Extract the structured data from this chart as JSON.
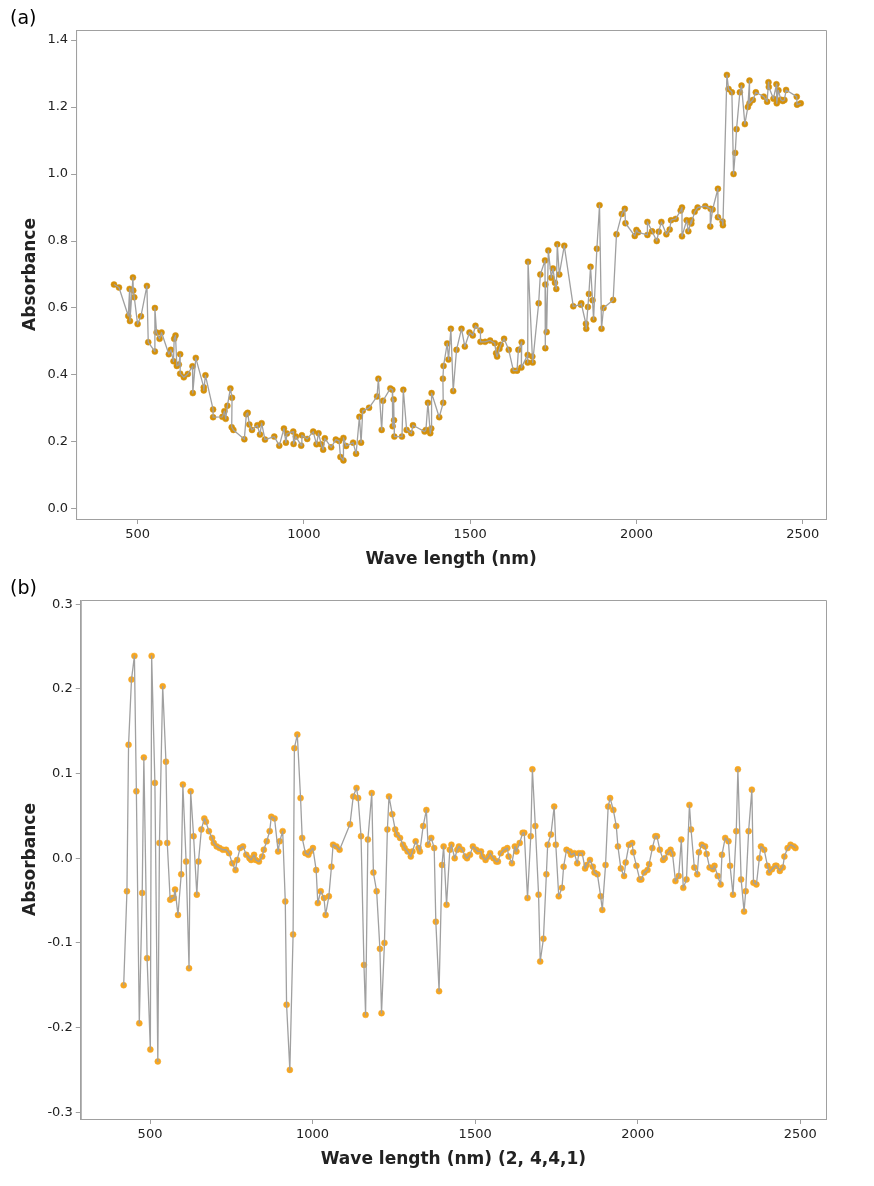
{
  "chart_data": [
    {
      "type": "line",
      "title": "(a)",
      "xlabel": "Wave length (nm)",
      "ylabel": "Absorbance",
      "line_style": "solid",
      "xlim": [
        315,
        2570
      ],
      "ylim": [
        -0.03,
        1.43
      ],
      "xticks": [
        500,
        1000,
        1500,
        2000,
        2500
      ],
      "yticks": [
        {
          "value": 0,
          "label": "0.0"
        },
        {
          "value": 0.2,
          "label": "0.2"
        },
        {
          "value": 0.4,
          "label": "0.4"
        },
        {
          "value": 0.6,
          "label": "0.6"
        },
        {
          "value": 0.8,
          "label": "0.8"
        },
        {
          "value": 1,
          "label": "1.0"
        },
        {
          "value": 1.2,
          "label": "1.2"
        },
        {
          "value": 1.4,
          "label": "1.4"
        }
      ],
      "x": [
        429,
        444,
        472,
        476,
        477,
        486,
        487,
        490,
        500,
        510,
        528,
        532,
        552,
        552,
        557,
        566,
        572,
        594,
        600,
        608,
        610,
        614,
        618,
        624,
        628,
        628,
        639,
        651,
        665,
        666,
        675,
        699,
        699,
        704,
        727,
        727,
        755,
        761,
        765,
        770,
        779,
        784,
        783,
        788,
        821,
        827,
        831,
        836,
        844,
        860,
        868,
        873,
        883,
        911,
        926,
        940,
        946,
        949,
        968,
        969,
        976,
        992,
        994,
        1010,
        1028,
        1038,
        1044,
        1052,
        1058,
        1063,
        1082,
        1096,
        1106,
        1110,
        1119,
        1119,
        1127,
        1148,
        1157,
        1167,
        1172,
        1177,
        1196,
        1220,
        1224,
        1234,
        1238,
        1260,
        1266,
        1267,
        1270,
        1271,
        1272,
        1295,
        1299,
        1309,
        1323,
        1328,
        1363,
        1367,
        1373,
        1380,
        1383,
        1384,
        1407,
        1419,
        1418,
        1420,
        1431,
        1435,
        1442,
        1449,
        1459,
        1474,
        1484,
        1498,
        1508,
        1516,
        1531,
        1531,
        1545,
        1560,
        1574,
        1578,
        1581,
        1588,
        1592,
        1602,
        1616,
        1630,
        1641,
        1645,
        1655,
        1654,
        1673,
        1673,
        1674,
        1687,
        1688,
        1706,
        1711,
        1725,
        1726,
        1726,
        1730,
        1735,
        1744,
        1749,
        1755,
        1759,
        1762,
        1768,
        1783,
        1810,
        1833,
        1834,
        1848,
        1849,
        1854,
        1857,
        1862,
        1868,
        1871,
        1881,
        1889,
        1895,
        1901,
        1930,
        1940,
        1956,
        1965,
        1967,
        1995,
        2000,
        2005,
        2033,
        2033,
        2047,
        2061,
        2067,
        2075,
        2090,
        2100,
        2104,
        2118,
        2133,
        2137,
        2137,
        2151,
        2156,
        2165,
        2165,
        2175,
        2184,
        2207,
        2223,
        2222,
        2229,
        2245,
        2245,
        2259,
        2260,
        2272,
        2277,
        2287,
        2292,
        2297,
        2301,
        2311,
        2316,
        2326,
        2335,
        2340,
        2340,
        2350,
        2359,
        2383,
        2393,
        2397,
        2398,
        2412,
        2421,
        2422,
        2427,
        2434,
        2440,
        2445,
        2450,
        2482,
        2483,
        2494
      ],
      "series": [
        {
          "type": "line",
          "color": "#a0a0a0",
          "marker": "none",
          "values": [
            0.67,
            0.661,
            0.576,
            0.657,
            0.561,
            0.691,
            0.652,
            0.632,
            0.552,
            0.575,
            0.666,
            0.498,
            0.47,
            0.6,
            0.527,
            0.508,
            0.527,
            0.462,
            0.475,
            0.441,
            0.508,
            0.518,
            0.427,
            0.431,
            0.462,
            0.404,
            0.393,
            0.403,
            0.426,
            0.346,
            0.451,
            0.363,
            0.354,
            0.399,
            0.297,
            0.274,
            0.275,
            0.292,
            0.269,
            0.308,
            0.36,
            0.332,
            0.244,
            0.236,
            0.208,
            0.283,
            0.287,
            0.252,
            0.236,
            0.25,
            0.222,
            0.256,
            0.207,
            0.216,
            0.189,
            0.24,
            0.198,
            0.225,
            0.231,
            0.194,
            0.216,
            0.189,
            0.22,
            0.209,
            0.231,
            0.193,
            0.226,
            0.193,
            0.177,
            0.211,
            0.184,
            0.207,
            0.203,
            0.155,
            0.145,
            0.212,
            0.188,
            0.198,
            0.165,
            0.275,
            0.198,
            0.293,
            0.302,
            0.336,
            0.389,
            0.236,
            0.323,
            0.36,
            0.356,
            0.247,
            0.327,
            0.265,
            0.216,
            0.216,
            0.356,
            0.236,
            0.226,
            0.25,
            0.231,
            0.236,
            0.317,
            0.226,
            0.24,
            0.346,
            0.274,
            0.317,
            0.389,
            0.427,
            0.494,
            0.446,
            0.538,
            0.352,
            0.475,
            0.538,
            0.485,
            0.527,
            0.518,
            0.547,
            0.533,
            0.499,
            0.499,
            0.503,
            0.495,
            0.465,
            0.455,
            0.478,
            0.49,
            0.508,
            0.475,
            0.413,
            0.413,
            0.475,
            0.498,
            0.422,
            0.46,
            0.437,
            0.738,
            0.455,
            0.437,
            0.614,
            0.7,
            0.742,
            0.48,
            0.67,
            0.528,
            0.772,
            0.69,
            0.718,
            0.675,
            0.657,
            0.79,
            0.7,
            0.786,
            0.605,
            0.61,
            0.614,
            0.553,
            0.538,
            0.603,
            0.642,
            0.723,
            0.623,
            0.566,
            0.777,
            0.907,
            0.538,
            0.6,
            0.624,
            0.82,
            0.881,
            0.896,
            0.853,
            0.815,
            0.833,
            0.826,
            0.818,
            0.857,
            0.829,
            0.8,
            0.828,
            0.857,
            0.82,
            0.834,
            0.862,
            0.866,
            0.891,
            0.9,
            0.814,
            0.862,
            0.829,
            0.862,
            0.852,
            0.887,
            0.9,
            0.904,
            0.896,
            0.843,
            0.894,
            0.956,
            0.871,
            0.858,
            0.847,
            1.296,
            1.254,
            1.244,
            1.0,
            1.063,
            1.134,
            1.244,
            1.264,
            1.149,
            1.2,
            1.279,
            1.211,
            1.221,
            1.244,
            1.231,
            1.216,
            1.274,
            1.26,
            1.225,
            1.268,
            1.211,
            1.25,
            1.222,
            1.218,
            1.221,
            1.251,
            1.231,
            1.207,
            1.211
          ]
        },
        {
          "type": "scatter",
          "color": "#d4900a",
          "marker": "circle",
          "values": [
            0.67,
            0.661,
            0.576,
            0.657,
            0.561,
            0.691,
            0.652,
            0.632,
            0.552,
            0.575,
            0.666,
            0.498,
            0.47,
            0.6,
            0.527,
            0.508,
            0.527,
            0.462,
            0.475,
            0.441,
            0.508,
            0.518,
            0.427,
            0.431,
            0.462,
            0.404,
            0.393,
            0.403,
            0.426,
            0.346,
            0.451,
            0.363,
            0.354,
            0.399,
            0.297,
            0.274,
            0.275,
            0.292,
            0.269,
            0.308,
            0.36,
            0.332,
            0.244,
            0.236,
            0.208,
            0.283,
            0.287,
            0.252,
            0.236,
            0.25,
            0.222,
            0.256,
            0.207,
            0.216,
            0.189,
            0.24,
            0.198,
            0.225,
            0.231,
            0.194,
            0.216,
            0.189,
            0.22,
            0.209,
            0.231,
            0.193,
            0.226,
            0.193,
            0.177,
            0.211,
            0.184,
            0.207,
            0.203,
            0.155,
            0.145,
            0.212,
            0.188,
            0.198,
            0.165,
            0.275,
            0.198,
            0.293,
            0.302,
            0.336,
            0.389,
            0.236,
            0.323,
            0.36,
            0.356,
            0.247,
            0.327,
            0.265,
            0.216,
            0.216,
            0.356,
            0.236,
            0.226,
            0.25,
            0.231,
            0.236,
            0.317,
            0.226,
            0.24,
            0.346,
            0.274,
            0.317,
            0.389,
            0.427,
            0.494,
            0.446,
            0.538,
            0.352,
            0.475,
            0.538,
            0.485,
            0.527,
            0.518,
            0.547,
            0.533,
            0.499,
            0.499,
            0.503,
            0.495,
            0.465,
            0.455,
            0.478,
            0.49,
            0.508,
            0.475,
            0.413,
            0.413,
            0.475,
            0.498,
            0.422,
            0.46,
            0.437,
            0.738,
            0.455,
            0.437,
            0.614,
            0.7,
            0.742,
            0.48,
            0.67,
            0.528,
            0.772,
            0.69,
            0.718,
            0.675,
            0.657,
            0.79,
            0.7,
            0.786,
            0.605,
            0.61,
            0.614,
            0.553,
            0.538,
            0.603,
            0.642,
            0.723,
            0.623,
            0.566,
            0.777,
            0.907,
            0.538,
            0.6,
            0.624,
            0.82,
            0.881,
            0.896,
            0.853,
            0.815,
            0.833,
            0.826,
            0.818,
            0.857,
            0.829,
            0.8,
            0.828,
            0.857,
            0.82,
            0.834,
            0.862,
            0.866,
            0.891,
            0.9,
            0.814,
            0.862,
            0.829,
            0.862,
            0.852,
            0.887,
            0.9,
            0.904,
            0.896,
            0.843,
            0.894,
            0.956,
            0.871,
            0.858,
            0.847,
            1.296,
            1.254,
            1.244,
            1.0,
            1.063,
            1.134,
            1.244,
            1.264,
            1.149,
            1.2,
            1.279,
            1.211,
            1.221,
            1.244,
            1.231,
            1.216,
            1.274,
            1.26,
            1.225,
            1.268,
            1.211,
            1.25,
            1.222,
            1.218,
            1.221,
            1.251,
            1.231,
            1.207,
            1.211
          ]
        }
      ]
    },
    {
      "type": "line",
      "title": "(b)",
      "xlabel": "Wave length (nm) (2, 4,4,1)",
      "ylabel": "Absorbance",
      "line_style": "solid",
      "xlim": [
        287,
        2579
      ],
      "ylim": [
        -0.308,
        0.305
      ],
      "xticks": [
        500,
        1000,
        1500,
        2000,
        2500
      ],
      "yticks": [
        {
          "value": -0.3,
          "label": "-0.3"
        },
        {
          "value": -0.2,
          "label": "-0.2"
        },
        {
          "value": -0.1,
          "label": "-0.1"
        },
        {
          "value": 0,
          "label": "0.0"
        },
        {
          "value": 0.1,
          "label": "0.1"
        },
        {
          "value": 0.2,
          "label": "0.2"
        },
        {
          "value": 0.3,
          "label": "0.3"
        }
      ],
      "x": [
        419,
        429,
        434,
        443,
        452,
        458,
        467,
        476,
        481,
        491,
        501,
        505,
        515,
        524,
        529,
        539,
        549,
        553,
        562,
        568,
        573,
        577,
        586,
        596,
        601,
        611,
        620,
        625,
        634,
        644,
        649,
        658,
        667,
        672,
        681,
        691,
        696,
        705,
        714,
        724,
        734,
        743,
        753,
        763,
        768,
        777,
        786,
        796,
        806,
        811,
        820,
        825,
        835,
        845,
        850,
        859,
        868,
        873,
        883,
        894,
        899,
        908,
        916,
        920,
        930,
        940,
        944,
        953,
        963,
        968,
        978,
        987,
        992,
        1001,
        1011,
        1016,
        1025,
        1035,
        1040,
        1050,
        1058,
        1063,
        1073,
        1083,
        1115,
        1125,
        1135,
        1140,
        1149,
        1158,
        1163,
        1170,
        1182,
        1187,
        1197,
        1207,
        1212,
        1221,
        1230,
        1235,
        1245,
        1254,
        1259,
        1269,
        1278,
        1283,
        1292,
        1302,
        1307,
        1317,
        1326,
        1330,
        1340,
        1350,
        1355,
        1365,
        1374,
        1379,
        1389,
        1398,
        1403,
        1412,
        1422,
        1427,
        1437,
        1445,
        1450,
        1460,
        1470,
        1475,
        1484,
        1493,
        1503,
        1508,
        1518,
        1522,
        1532,
        1541,
        1546,
        1556,
        1565,
        1570,
        1579,
        1589,
        1599,
        1603,
        1613,
        1622,
        1627,
        1637,
        1646,
        1651,
        1661,
        1671,
        1676,
        1685,
        1695,
        1700,
        1710,
        1719,
        1723,
        1733,
        1743,
        1748,
        1757,
        1767,
        1772,
        1781,
        1791,
        1795,
        1805,
        1814,
        1819,
        1829,
        1838,
        1843,
        1853,
        1862,
        1867,
        1876,
        1886,
        1891,
        1901,
        1909,
        1915,
        1925,
        1934,
        1939,
        1948,
        1958,
        1963,
        1973,
        1983,
        1986,
        1996,
        2006,
        2011,
        2020,
        2030,
        2035,
        2045,
        2054,
        2059,
        2068,
        2078,
        2083,
        2093,
        2101,
        2107,
        2116,
        2126,
        2134,
        2140,
        2150,
        2159,
        2164,
        2174,
        2183,
        2188,
        2197,
        2207,
        2212,
        2221,
        2231,
        2236,
        2246,
        2255,
        2259,
        2269,
        2279,
        2284,
        2293,
        2303,
        2308,
        2318,
        2327,
        2332,
        2341,
        2351,
        2356,
        2365,
        2374,
        2379,
        2389,
        2399,
        2404,
        2413,
        2423,
        2427,
        2437,
        2446,
        2451,
        2461,
        2470,
        2480,
        2485
      ],
      "series": [
        {
          "type": "line",
          "color": "#a0a0a0",
          "marker": "none",
          "values": [
            -0.15,
            -0.039,
            0.134,
            0.211,
            0.239,
            0.079,
            -0.195,
            -0.041,
            0.119,
            -0.118,
            -0.226,
            0.239,
            0.089,
            -0.24,
            0.018,
            0.203,
            0.114,
            0.018,
            -0.049,
            -0.047,
            -0.047,
            -0.037,
            -0.067,
            -0.019,
            0.087,
            -0.004,
            -0.13,
            0.079,
            0.026,
            -0.043,
            -0.004,
            0.034,
            0.047,
            0.043,
            0.032,
            0.024,
            0.018,
            0.014,
            0.012,
            0.01,
            0.01,
            0.006,
            -0.006,
            -0.014,
            -0.002,
            0.012,
            0.014,
            0.004,
            0.0,
            -0.002,
            0.004,
            -0.002,
            -0.004,
            0.002,
            0.01,
            0.02,
            0.032,
            0.049,
            0.047,
            0.008,
            0.02,
            0.032,
            -0.051,
            -0.173,
            -0.25,
            -0.09,
            0.13,
            0.146,
            0.071,
            0.024,
            0.006,
            0.004,
            0.008,
            0.012,
            -0.014,
            -0.053,
            -0.039,
            -0.047,
            -0.067,
            -0.045,
            -0.01,
            0.016,
            0.014,
            0.01,
            0.04,
            0.073,
            0.083,
            0.071,
            0.026,
            -0.126,
            -0.185,
            0.022,
            0.077,
            -0.017,
            -0.039,
            -0.107,
            -0.183,
            -0.1,
            0.034,
            0.073,
            0.052,
            0.034,
            0.028,
            0.024,
            0.016,
            0.012,
            0.008,
            0.002,
            0.008,
            0.02,
            0.012,
            0.008,
            0.038,
            0.057,
            0.016,
            0.024,
            0.012,
            -0.075,
            -0.157,
            -0.008,
            0.014,
            -0.055,
            0.01,
            0.016,
            0.0,
            0.01,
            0.014,
            0.01,
            0.002,
            0.0,
            0.004,
            0.014,
            0.01,
            0.008,
            0.008,
            0.002,
            -0.002,
            0.002,
            0.006,
            0.0,
            -0.004,
            -0.004,
            0.006,
            0.01,
            0.012,
            0.002,
            -0.006,
            0.014,
            0.008,
            0.018,
            0.03,
            0.03,
            -0.047,
            0.026,
            0.105,
            0.038,
            -0.043,
            -0.122,
            -0.095,
            -0.019,
            0.016,
            0.028,
            0.061,
            0.016,
            -0.045,
            -0.035,
            -0.01,
            0.01,
            0.008,
            0.004,
            0.006,
            -0.006,
            0.006,
            0.006,
            -0.012,
            -0.008,
            -0.002,
            -0.01,
            -0.017,
            -0.019,
            -0.045,
            -0.061,
            -0.008,
            0.061,
            0.071,
            0.057,
            0.038,
            0.014,
            -0.012,
            -0.021,
            -0.005,
            0.016,
            0.018,
            0.007,
            -0.009,
            -0.025,
            -0.025,
            -0.017,
            -0.014,
            -0.007,
            0.012,
            0.026,
            0.026,
            0.01,
            -0.002,
            0.0,
            0.007,
            0.01,
            0.005,
            -0.027,
            -0.021,
            0.022,
            -0.035,
            -0.025,
            0.063,
            0.034,
            -0.011,
            -0.019,
            0.007,
            0.016,
            0.014,
            0.005,
            -0.011,
            -0.013,
            -0.009,
            -0.021,
            -0.031,
            0.004,
            0.024,
            0.02,
            -0.009,
            -0.043,
            0.032,
            0.105,
            -0.025,
            -0.063,
            -0.039,
            0.032,
            0.081,
            -0.029,
            -0.031,
            0.0,
            0.014,
            0.01,
            -0.009,
            -0.017,
            -0.013,
            -0.009,
            -0.009,
            -0.015,
            -0.011,
            0.002,
            0.012,
            0.016,
            0.014,
            0.012
          ]
        },
        {
          "type": "scatter",
          "color": "#f5a623",
          "marker": "circle",
          "values": [
            -0.15,
            -0.039,
            0.134,
            0.211,
            0.239,
            0.079,
            -0.195,
            -0.041,
            0.119,
            -0.118,
            -0.226,
            0.239,
            0.089,
            -0.24,
            0.018,
            0.203,
            0.114,
            0.018,
            -0.049,
            -0.047,
            -0.047,
            -0.037,
            -0.067,
            -0.019,
            0.087,
            -0.004,
            -0.13,
            0.079,
            0.026,
            -0.043,
            -0.004,
            0.034,
            0.047,
            0.043,
            0.032,
            0.024,
            0.018,
            0.014,
            0.012,
            0.01,
            0.01,
            0.006,
            -0.006,
            -0.014,
            -0.002,
            0.012,
            0.014,
            0.004,
            0.0,
            -0.002,
            0.004,
            -0.002,
            -0.004,
            0.002,
            0.01,
            0.02,
            0.032,
            0.049,
            0.047,
            0.008,
            0.02,
            0.032,
            -0.051,
            -0.173,
            -0.25,
            -0.09,
            0.13,
            0.146,
            0.071,
            0.024,
            0.006,
            0.004,
            0.008,
            0.012,
            -0.014,
            -0.053,
            -0.039,
            -0.047,
            -0.067,
            -0.045,
            -0.01,
            0.016,
            0.014,
            0.01,
            0.04,
            0.073,
            0.083,
            0.071,
            0.026,
            -0.126,
            -0.185,
            0.022,
            0.077,
            -0.017,
            -0.039,
            -0.107,
            -0.183,
            -0.1,
            0.034,
            0.073,
            0.052,
            0.034,
            0.028,
            0.024,
            0.016,
            0.012,
            0.008,
            0.002,
            0.008,
            0.02,
            0.012,
            0.008,
            0.038,
            0.057,
            0.016,
            0.024,
            0.012,
            -0.075,
            -0.157,
            -0.008,
            0.014,
            -0.055,
            0.01,
            0.016,
            0.0,
            0.01,
            0.014,
            0.01,
            0.002,
            0.0,
            0.004,
            0.014,
            0.01,
            0.008,
            0.008,
            0.002,
            -0.002,
            0.002,
            0.006,
            0.0,
            -0.004,
            -0.004,
            0.006,
            0.01,
            0.012,
            0.002,
            -0.006,
            0.014,
            0.008,
            0.018,
            0.03,
            0.03,
            -0.047,
            0.026,
            0.105,
            0.038,
            -0.043,
            -0.122,
            -0.095,
            -0.019,
            0.016,
            0.028,
            0.061,
            0.016,
            -0.045,
            -0.035,
            -0.01,
            0.01,
            0.008,
            0.004,
            0.006,
            -0.006,
            0.006,
            0.006,
            -0.012,
            -0.008,
            -0.002,
            -0.01,
            -0.017,
            -0.019,
            -0.045,
            -0.061,
            -0.008,
            0.061,
            0.071,
            0.057,
            0.038,
            0.014,
            -0.012,
            -0.021,
            -0.005,
            0.016,
            0.018,
            0.007,
            -0.009,
            -0.025,
            -0.025,
            -0.017,
            -0.014,
            -0.007,
            0.012,
            0.026,
            0.026,
            0.01,
            -0.002,
            0.0,
            0.007,
            0.01,
            0.005,
            -0.027,
            -0.021,
            0.022,
            -0.035,
            -0.025,
            0.063,
            0.034,
            -0.011,
            -0.019,
            0.007,
            0.016,
            0.014,
            0.005,
            -0.011,
            -0.013,
            -0.009,
            -0.021,
            -0.031,
            0.004,
            0.024,
            0.02,
            -0.009,
            -0.043,
            0.032,
            0.105,
            -0.025,
            -0.063,
            -0.039,
            0.032,
            0.081,
            -0.029,
            -0.031,
            0.0,
            0.014,
            0.01,
            -0.009,
            -0.017,
            -0.013,
            -0.009,
            -0.009,
            -0.015,
            -0.011,
            0.002,
            0.012,
            0.016,
            0.014,
            0.012
          ]
        }
      ]
    }
  ]
}
